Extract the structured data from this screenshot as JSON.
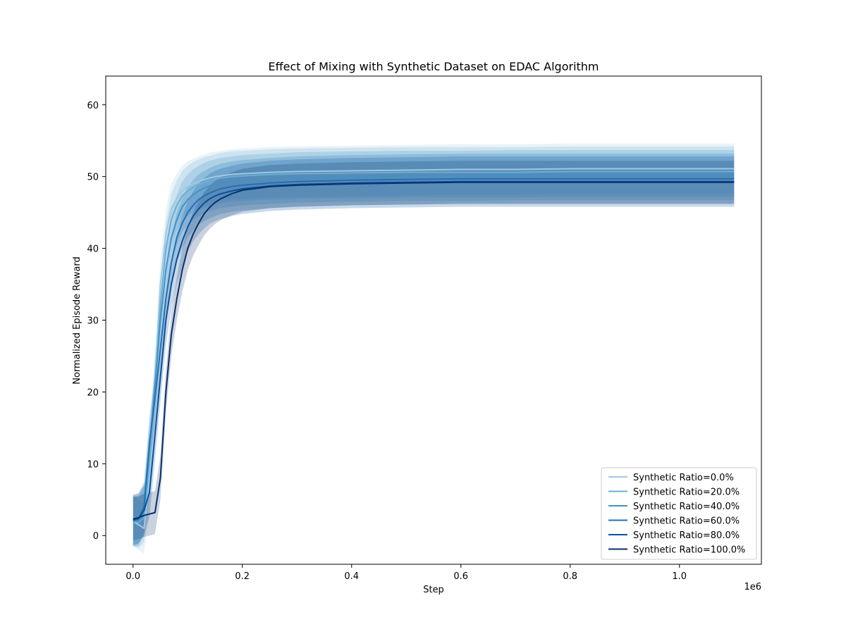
{
  "chart_data": {
    "type": "line",
    "title": "Effect of Mixing with Synthetic Dataset on EDAC Algorithm",
    "xlabel": "Step",
    "ylabel": "Normalized Episode Reward",
    "x_offset_label": "1e6",
    "xlim": [
      -50000,
      1150000
    ],
    "ylim": [
      -4,
      64
    ],
    "x_ticks": [
      0,
      200000,
      400000,
      600000,
      800000,
      1000000
    ],
    "x_tick_labels": [
      "0.0",
      "0.2",
      "0.4",
      "0.6",
      "0.8",
      "1.0"
    ],
    "y_ticks": [
      0,
      10,
      20,
      30,
      40,
      50,
      60
    ],
    "y_tick_labels": [
      "0",
      "10",
      "20",
      "30",
      "40",
      "50",
      "60"
    ],
    "grid": false,
    "legend_position": "lower-right",
    "shaded_band": true,
    "x": [
      0,
      10000,
      20000,
      30000,
      40000,
      50000,
      60000,
      70000,
      80000,
      90000,
      100000,
      110000,
      120000,
      130000,
      140000,
      150000,
      160000,
      180000,
      200000,
      250000,
      300000,
      400000,
      500000,
      600000,
      700000,
      800000,
      900000,
      1000000,
      1100000
    ],
    "series": [
      {
        "name": "Synthetic Ratio=0.0%",
        "color": "#9ecae1",
        "band": 3.5,
        "values": [
          2.0,
          1.5,
          1.0,
          8.0,
          22.0,
          35.0,
          42.0,
          45.5,
          47.0,
          48.0,
          48.6,
          49.0,
          49.3,
          49.6,
          49.8,
          50.0,
          50.1,
          50.3,
          50.4,
          50.6,
          50.7,
          50.8,
          50.9,
          51.0,
          51.0,
          51.1,
          51.1,
          51.1,
          51.1
        ]
      },
      {
        "name": "Synthetic Ratio=20.0%",
        "color": "#6baed6",
        "band": 3.5,
        "values": [
          2.0,
          1.8,
          2.5,
          10.0,
          20.0,
          32.0,
          40.0,
          44.0,
          46.0,
          47.3,
          48.0,
          48.5,
          48.9,
          49.2,
          49.4,
          49.6,
          49.8,
          50.0,
          50.1,
          50.3,
          50.4,
          50.5,
          50.6,
          50.6,
          50.6,
          50.7,
          50.7,
          50.7,
          50.7
        ]
      },
      {
        "name": "Synthetic Ratio=40.0%",
        "color": "#4292c6",
        "band": 3.5,
        "values": [
          2.0,
          2.0,
          3.5,
          12.0,
          21.0,
          30.0,
          37.0,
          41.5,
          44.0,
          45.8,
          46.8,
          47.5,
          48.0,
          48.4,
          48.7,
          48.9,
          49.1,
          49.3,
          49.5,
          49.7,
          49.9,
          50.0,
          50.1,
          50.1,
          50.2,
          50.2,
          50.2,
          50.2,
          50.2
        ]
      },
      {
        "name": "Synthetic Ratio=60.0%",
        "color": "#2171b5",
        "band": 3.5,
        "values": [
          2.1,
          2.3,
          4.0,
          13.0,
          19.0,
          26.0,
          33.0,
          38.0,
          41.5,
          43.5,
          45.0,
          46.0,
          46.8,
          47.3,
          47.7,
          48.0,
          48.3,
          48.6,
          48.8,
          49.1,
          49.3,
          49.5,
          49.6,
          49.7,
          49.7,
          49.7,
          49.7,
          49.7,
          49.7
        ]
      },
      {
        "name": "Synthetic Ratio=80.0%",
        "color": "#08519c",
        "band": 3.5,
        "values": [
          2.2,
          2.4,
          3.5,
          6.0,
          14.0,
          22.0,
          30.0,
          35.0,
          38.5,
          41.0,
          43.0,
          44.5,
          45.5,
          46.3,
          46.9,
          47.3,
          47.6,
          48.0,
          48.3,
          48.7,
          48.9,
          49.1,
          49.2,
          49.3,
          49.3,
          49.3,
          49.3,
          49.3,
          49.3
        ]
      },
      {
        "name": "Synthetic Ratio=100.0%",
        "color": "#08306b",
        "band": 3.0,
        "values": [
          2.3,
          2.5,
          2.8,
          3.0,
          3.2,
          8.0,
          20.0,
          28.0,
          33.0,
          37.0,
          40.0,
          42.0,
          43.5,
          44.8,
          45.7,
          46.4,
          46.9,
          47.6,
          48.1,
          48.6,
          48.8,
          49.0,
          49.1,
          49.2,
          49.2,
          49.2,
          49.2,
          49.2,
          49.2
        ]
      }
    ]
  }
}
